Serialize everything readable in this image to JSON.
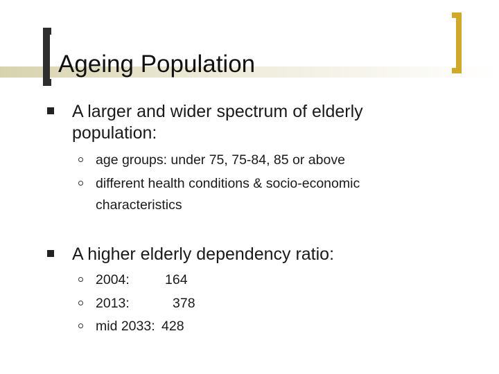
{
  "slide": {
    "title": "Ageing Population",
    "bullets": [
      {
        "text": "A larger and wider spectrum of elderly population:",
        "sub": [
          "age groups: under 75, 75-84, 85 or above",
          "different health conditions & socio-economic characteristics"
        ]
      },
      {
        "text": "A higher elderly dependency ratio:",
        "sub": [
          {
            "label": "2004:",
            "value": "164"
          },
          {
            "label": "2013:",
            "value": "378"
          },
          {
            "label": "mid 2033:",
            "value": "428"
          }
        ]
      }
    ]
  }
}
